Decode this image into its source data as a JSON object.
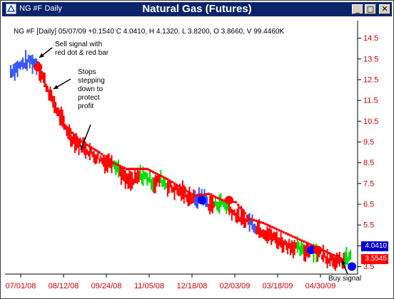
{
  "window": {
    "title": "NG #F Daily",
    "minimize": "_",
    "maximize": "□",
    "close": "✕"
  },
  "chart_title": "Natural Gas (Futures)",
  "info_line": "NG #F [Daily] 05/07/09 +0.1540 C 4.0410, H 4.1320, L 3.8200, O 3.8660, V 99.4460K",
  "price_boxes": {
    "last": "4.0410",
    "stop": "3.5545",
    "last_color": "#0000cc",
    "stop_color": "#ff0000"
  },
  "annotations": {
    "sell": "Sell signal with\nred dot & red bar",
    "stops": "Stops\nstepping\ndown to\nprotect\nprofit",
    "buy": "Buy signal"
  },
  "colors": {
    "up_bar": "#00dd00",
    "down_bar": "#ff0000",
    "neutral_bar": "#3355ff",
    "stop_dot": "#ff0000",
    "axis_text": "#cc0000"
  },
  "chart_data": {
    "type": "bar",
    "title": "Natural Gas (Futures)",
    "xlabel": "",
    "ylabel": "",
    "x_ticks": [
      "07/01/08",
      "08/12/08",
      "09/24/08",
      "11/05/08",
      "12/18/08",
      "02/03/09",
      "03/18/09",
      "04/30/09"
    ],
    "y_ticks": [
      "14.5",
      "13.5",
      "12.5",
      "11.5",
      "10.5",
      "9.5",
      "8.5",
      "7.5",
      "6.5",
      "5.5",
      "4.5",
      "3.5"
    ],
    "ylim": [
      3.0,
      15.0
    ],
    "grid": false,
    "price_series": [
      {
        "x": 0,
        "v": 12.9,
        "c": "neutral"
      },
      {
        "x": 2,
        "v": 13.1,
        "c": "neutral"
      },
      {
        "x": 4,
        "v": 13.3,
        "c": "neutral"
      },
      {
        "x": 6,
        "v": 13.4,
        "c": "neutral"
      },
      {
        "x": 8,
        "v": 13.2,
        "c": "down"
      },
      {
        "x": 10,
        "v": 12.4,
        "c": "down"
      },
      {
        "x": 12,
        "v": 11.6,
        "c": "down"
      },
      {
        "x": 14,
        "v": 10.9,
        "c": "down"
      },
      {
        "x": 16,
        "v": 10.2,
        "c": "down"
      },
      {
        "x": 18,
        "v": 9.7,
        "c": "down"
      },
      {
        "x": 20,
        "v": 9.4,
        "c": "down"
      },
      {
        "x": 22,
        "v": 9.2,
        "c": "down"
      },
      {
        "x": 24,
        "v": 8.9,
        "c": "down"
      },
      {
        "x": 26,
        "v": 8.7,
        "c": "down"
      },
      {
        "x": 28,
        "v": 8.5,
        "c": "down"
      },
      {
        "x": 30,
        "v": 8.6,
        "c": "up"
      },
      {
        "x": 32,
        "v": 8.1,
        "c": "down"
      },
      {
        "x": 34,
        "v": 7.6,
        "c": "down"
      },
      {
        "x": 36,
        "v": 7.6,
        "c": "down"
      },
      {
        "x": 38,
        "v": 7.9,
        "c": "up"
      },
      {
        "x": 40,
        "v": 7.8,
        "c": "up"
      },
      {
        "x": 42,
        "v": 7.5,
        "c": "down"
      },
      {
        "x": 44,
        "v": 7.7,
        "c": "up"
      },
      {
        "x": 46,
        "v": 7.4,
        "c": "down"
      },
      {
        "x": 48,
        "v": 7.2,
        "c": "down"
      },
      {
        "x": 50,
        "v": 7.1,
        "c": "down"
      },
      {
        "x": 52,
        "v": 6.9,
        "c": "down"
      },
      {
        "x": 54,
        "v": 6.7,
        "c": "neutral"
      },
      {
        "x": 56,
        "v": 6.9,
        "c": "neutral"
      },
      {
        "x": 58,
        "v": 6.5,
        "c": "down"
      },
      {
        "x": 60,
        "v": 6.5,
        "c": "up"
      },
      {
        "x": 62,
        "v": 6.6,
        "c": "up"
      },
      {
        "x": 64,
        "v": 6.3,
        "c": "down"
      },
      {
        "x": 66,
        "v": 6.0,
        "c": "down"
      },
      {
        "x": 68,
        "v": 5.8,
        "c": "down"
      },
      {
        "x": 70,
        "v": 5.7,
        "c": "neutral"
      },
      {
        "x": 72,
        "v": 5.4,
        "c": "down"
      },
      {
        "x": 74,
        "v": 5.2,
        "c": "down"
      },
      {
        "x": 76,
        "v": 5.0,
        "c": "down"
      },
      {
        "x": 78,
        "v": 4.8,
        "c": "down"
      },
      {
        "x": 80,
        "v": 4.6,
        "c": "down"
      },
      {
        "x": 82,
        "v": 4.5,
        "c": "down"
      },
      {
        "x": 84,
        "v": 4.4,
        "c": "up"
      },
      {
        "x": 86,
        "v": 4.2,
        "c": "down"
      },
      {
        "x": 88,
        "v": 4.4,
        "c": "up"
      },
      {
        "x": 90,
        "v": 4.2,
        "c": "down"
      },
      {
        "x": 92,
        "v": 4.0,
        "c": "down"
      },
      {
        "x": 94,
        "v": 3.9,
        "c": "down"
      },
      {
        "x": 96,
        "v": 3.7,
        "c": "down"
      },
      {
        "x": 98,
        "v": 3.8,
        "c": "up"
      },
      {
        "x": 100,
        "v": 4.0,
        "c": "neutral"
      }
    ],
    "stop_series": [
      {
        "x": 8,
        "v": 13.3
      },
      {
        "x": 10,
        "v": 12.2
      },
      {
        "x": 12,
        "v": 11.5
      },
      {
        "x": 14,
        "v": 10.8
      },
      {
        "x": 16,
        "v": 10.3
      },
      {
        "x": 20,
        "v": 9.6
      },
      {
        "x": 26,
        "v": 9.0
      },
      {
        "x": 30,
        "v": 8.5
      },
      {
        "x": 34,
        "v": 8.2
      },
      {
        "x": 40,
        "v": 8.2
      },
      {
        "x": 46,
        "v": 7.7
      },
      {
        "x": 50,
        "v": 7.3
      },
      {
        "x": 54,
        "v": 6.9
      },
      {
        "x": 58,
        "v": 7.0
      },
      {
        "x": 62,
        "v": 6.7
      },
      {
        "x": 66,
        "v": 6.6
      },
      {
        "x": 70,
        "v": 5.8
      },
      {
        "x": 74,
        "v": 5.6
      },
      {
        "x": 78,
        "v": 5.3
      },
      {
        "x": 82,
        "v": 5.0
      },
      {
        "x": 86,
        "v": 4.7
      },
      {
        "x": 90,
        "v": 4.4
      },
      {
        "x": 94,
        "v": 4.1
      },
      {
        "x": 98,
        "v": 3.8
      }
    ],
    "signal_dots": [
      {
        "x": 8,
        "v": 13.1,
        "color": "#ff0000"
      },
      {
        "x": 56,
        "v": 6.7,
        "color": "#0000ff"
      },
      {
        "x": 64,
        "v": 6.7,
        "color": "#ff0000"
      },
      {
        "x": 88,
        "v": 4.3,
        "color": "#0000ff"
      },
      {
        "x": 90,
        "v": 4.3,
        "color": "#ff0000"
      },
      {
        "x": 100,
        "v": 3.5,
        "color": "#0000ff"
      }
    ]
  }
}
